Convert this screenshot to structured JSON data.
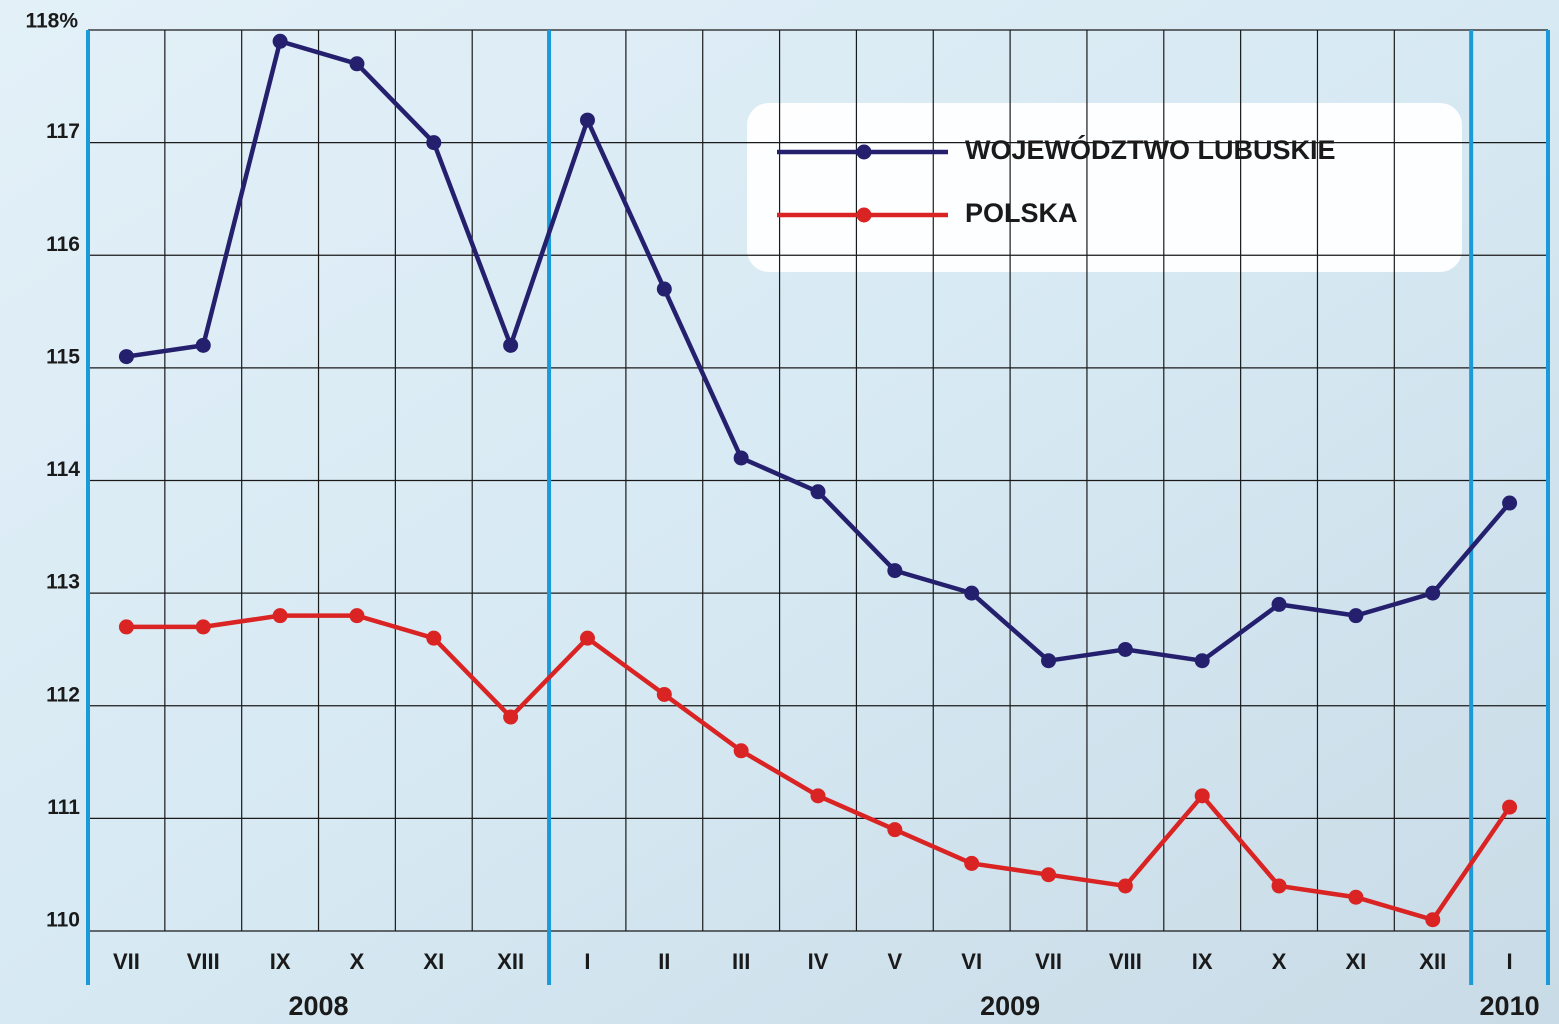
{
  "chart_data": {
    "type": "line",
    "categories": [
      "VII",
      "VIII",
      "IX",
      "X",
      "XI",
      "XII",
      "I",
      "II",
      "III",
      "IV",
      "V",
      "VI",
      "VII",
      "VIII",
      "IX",
      "X",
      "XI",
      "XII",
      "I"
    ],
    "year_groups": [
      {
        "label": "2008",
        "months": 6
      },
      {
        "label": "2009",
        "months": 12
      },
      {
        "label": "2010",
        "months": 1
      }
    ],
    "series": [
      {
        "name": "WOJEWÓDZTWO LUBUSKIE",
        "color": "#24206e",
        "values": [
          115.1,
          115.2,
          117.9,
          117.7,
          117.0,
          115.2,
          117.2,
          115.7,
          114.2,
          113.9,
          113.2,
          113.0,
          112.4,
          112.5,
          112.4,
          112.9,
          112.8,
          113.0,
          113.8
        ]
      },
      {
        "name": "POLSKA",
        "color": "#d92423",
        "values": [
          112.7,
          112.7,
          112.8,
          112.8,
          112.6,
          111.9,
          112.6,
          112.1,
          111.6,
          111.2,
          110.9,
          110.6,
          110.5,
          110.4,
          111.2,
          110.4,
          110.3,
          110.1,
          111.1
        ]
      }
    ],
    "ylim": [
      110,
      118
    ],
    "yticks": [
      110,
      111,
      112,
      113,
      114,
      115,
      116,
      117,
      {
        "value": 118,
        "label": "118%"
      }
    ],
    "grid": true
  }
}
